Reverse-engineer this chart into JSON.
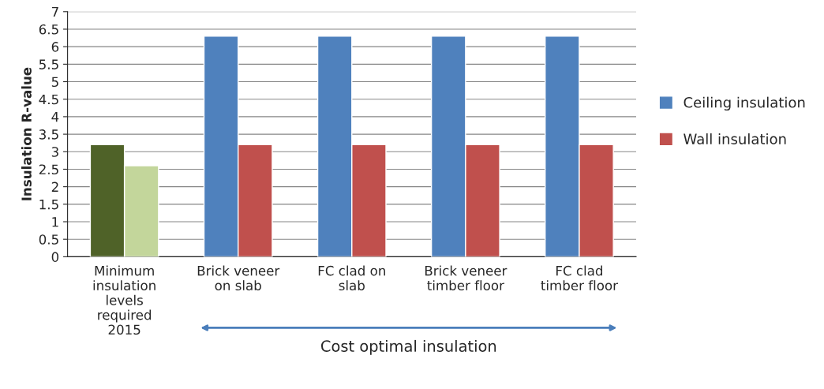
{
  "chart_data": {
    "type": "bar",
    "ylabel": "Insulation R-value",
    "categories": [
      "Minimum\ninsulation\nlevels\nrequired\n2015",
      "Brick veneer\non slab",
      "FC clad on\nslab",
      "Brick veneer\ntimber floor",
      "FC clad\ntimber floor"
    ],
    "series": [
      {
        "name": "Ceiling insulation",
        "color": "#4f81bd",
        "colors": [
          "#4f6228",
          "#4f81bd",
          "#4f81bd",
          "#4f81bd",
          "#4f81bd"
        ],
        "values": [
          3.2,
          6.3,
          6.3,
          6.3,
          6.3
        ]
      },
      {
        "name": "Wall insulation",
        "color": "#c0504d",
        "colors": [
          "#c3d69b",
          "#c0504d",
          "#c0504d",
          "#c0504d",
          "#c0504d"
        ],
        "values": [
          2.6,
          3.2,
          3.2,
          3.2,
          3.2
        ]
      }
    ],
    "ylim": [
      0,
      7
    ],
    "yticks": [
      0,
      0.5,
      1,
      1.5,
      2,
      2.5,
      3,
      3.5,
      4,
      4.5,
      5,
      5.5,
      6,
      6.5,
      7
    ],
    "grid": "y",
    "legend": "right",
    "annotations": [
      "Cost optimal insulation"
    ]
  }
}
